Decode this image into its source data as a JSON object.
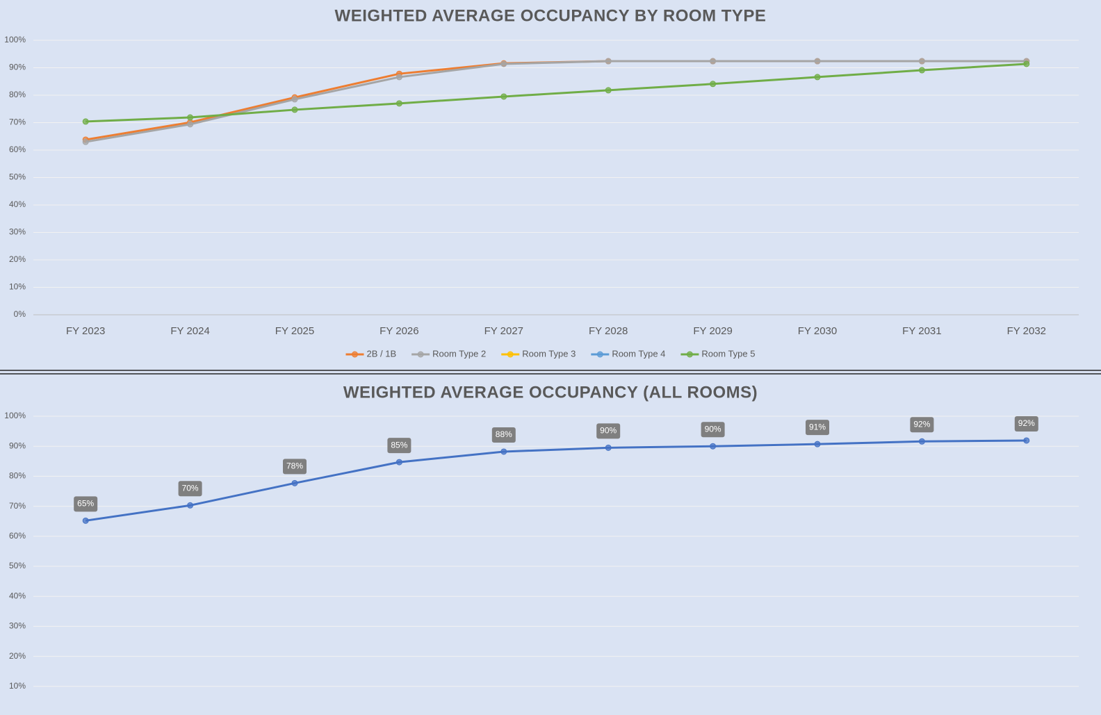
{
  "chart_data": [
    {
      "type": "line",
      "title": "WEIGHTED AVERAGE OCCUPANCY BY ROOM TYPE",
      "categories": [
        "FY 2023",
        "FY 2024",
        "FY 2025",
        "FY 2026",
        "FY 2027",
        "FY 2028",
        "FY 2029",
        "FY 2030",
        "FY 2031",
        "FY 2032"
      ],
      "series": [
        {
          "name": "2B / 1B",
          "color": "#ed7d31",
          "values": [
            63.8,
            70.1,
            79.2,
            87.8,
            91.6,
            92.4,
            92.4,
            92.4,
            92.4,
            92.4
          ]
        },
        {
          "name": "Room Type 2",
          "color": "#a5a5a5",
          "values": [
            63.0,
            69.4,
            78.5,
            86.6,
            91.4,
            92.4,
            92.4,
            92.4,
            92.4,
            92.4
          ]
        },
        {
          "name": "Room Type 3",
          "color": "#ffc000",
          "values": [
            null,
            null,
            null,
            null,
            null,
            null,
            null,
            null,
            null,
            null
          ]
        },
        {
          "name": "Room Type 4",
          "color": "#5b9bd5",
          "values": [
            null,
            null,
            null,
            null,
            null,
            null,
            null,
            null,
            null,
            null
          ]
        },
        {
          "name": "Room Type 5",
          "color": "#70ad47",
          "values": [
            70.4,
            71.9,
            74.7,
            77.0,
            79.5,
            81.8,
            84.1,
            86.6,
            89.1,
            91.4
          ]
        }
      ],
      "ylim": [
        0,
        100
      ],
      "yticks": [
        {
          "value": 0,
          "label": "0%"
        },
        {
          "value": 10,
          "label": "10%"
        },
        {
          "value": 20,
          "label": "20%"
        },
        {
          "value": 30,
          "label": "30%"
        },
        {
          "value": 40,
          "label": "40%"
        },
        {
          "value": 50,
          "label": "50%"
        },
        {
          "value": 60,
          "label": "60%"
        },
        {
          "value": 70,
          "label": "70%"
        },
        {
          "value": 80,
          "label": "80%"
        },
        {
          "value": 90,
          "label": "90%"
        },
        {
          "value": 100,
          "label": "100%"
        }
      ],
      "grid": true,
      "legend": "bottom"
    },
    {
      "type": "line",
      "title": "WEIGHTED AVERAGE OCCUPANCY (ALL ROOMS)",
      "categories": [
        null,
        null,
        null,
        null,
        null,
        null,
        null,
        null,
        null,
        null
      ],
      "series": [
        {
          "color": "#4472c4",
          "values": [
            65.2,
            70.3,
            77.7,
            84.7,
            88.2,
            89.5,
            90.0,
            90.7,
            91.6,
            91.9
          ],
          "value_labels": [
            "65%",
            "70%",
            "78%",
            "85%",
            "88%",
            "90%",
            "90%",
            "91%",
            "92%",
            "92%"
          ]
        }
      ],
      "ylim": [
        0,
        100
      ],
      "yticks": [
        {
          "value": 10,
          "label": "10%"
        },
        {
          "value": 20,
          "label": "20%"
        },
        {
          "value": 30,
          "label": "30%"
        },
        {
          "value": 40,
          "label": "40%"
        },
        {
          "value": 50,
          "label": "50%"
        },
        {
          "value": 60,
          "label": "60%"
        },
        {
          "value": 70,
          "label": "70%"
        },
        {
          "value": 80,
          "label": "80%"
        },
        {
          "value": 90,
          "label": "90%"
        },
        {
          "value": 100,
          "label": "100%"
        }
      ],
      "grid": true
    }
  ]
}
